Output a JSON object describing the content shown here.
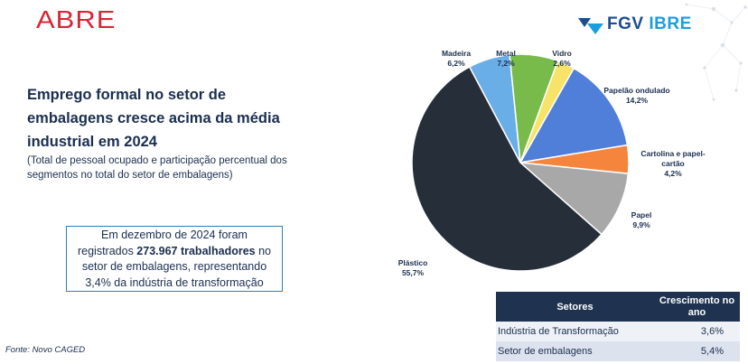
{
  "logos": {
    "abre": "ABRE",
    "fgv": "FGV",
    "ibre": "IBRE"
  },
  "title": "Emprego formal no setor de embalagens cresce acima da média industrial em 2024",
  "subtitle": "(Total de pessoal ocupado e participação percentual dos segmentos no total do setor de embalagens)",
  "info_box": {
    "line1": "Em dezembro de 2024 foram",
    "line2_pre": "registrados ",
    "line2_bold": "273.967 trabalhadores",
    "line2_post": " no",
    "line3": "setor de embalagens, representando",
    "line4": "3,4% da indústria de transformação"
  },
  "source": "Fonte: Novo CAGED",
  "chart_data": {
    "type": "pie",
    "title": "",
    "slices": [
      {
        "name": "Madeira",
        "label": "6,2%",
        "value": 6.2,
        "color": "#6aaee8"
      },
      {
        "name": "Metal",
        "label": "7,2%",
        "value": 7.2,
        "color": "#79bb4a"
      },
      {
        "name": "Vidro",
        "label": "2,6%",
        "value": 2.6,
        "color": "#f7e368"
      },
      {
        "name": "Papelão ondulado",
        "label": "14,2%",
        "value": 14.2,
        "color": "#4f7fd8"
      },
      {
        "name": "Cartolina e papel-cartão",
        "label": "4,2%",
        "value": 4.2,
        "color": "#f5843d"
      },
      {
        "name": "Papel",
        "label": "9,9%",
        "value": 9.9,
        "color": "#a8a8a8"
      },
      {
        "name": "Plástico",
        "label": "55,7%",
        "value": 55.7,
        "color": "#262e3a"
      }
    ]
  },
  "table": {
    "headers": [
      "Setores",
      "Crescimento no ano"
    ],
    "rows": [
      [
        "Indústria de Transformação",
        "3,6%"
      ],
      [
        "Setor de embalagens",
        "5,4%"
      ]
    ]
  }
}
